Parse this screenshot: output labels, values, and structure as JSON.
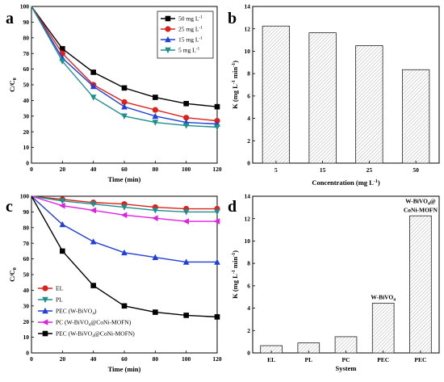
{
  "colors": {
    "50mg": "#000000",
    "25mg": "#e0201b",
    "15mg": "#1f3fd8",
    "5mg": "#1d8f8c",
    "EL": "#e0201b",
    "PL": "#1d8f8c",
    "PEC_W": "#1f3fd8",
    "PC_W_MOFN": "#e020e0",
    "PEC_W_MOFN": "#000000"
  },
  "chart_data": [
    {
      "panel": "a",
      "type": "line",
      "xlabel": "Time (min)",
      "ylabel": "C/C",
      "ylabel_sub": "0",
      "xlim": [
        0,
        120
      ],
      "ylim": [
        0,
        100
      ],
      "xticks": [
        0,
        20,
        40,
        60,
        80,
        100,
        120
      ],
      "yticks": [
        0,
        10,
        20,
        30,
        40,
        50,
        60,
        70,
        80,
        90,
        100
      ],
      "legend_position": "top-right",
      "x": [
        0,
        20,
        40,
        60,
        80,
        100,
        120
      ],
      "series": [
        {
          "key": "50mg",
          "name": "50 mg L",
          "sup": "-1",
          "marker": "square",
          "values": [
            100,
            73,
            58,
            48,
            42,
            38,
            36
          ]
        },
        {
          "key": "25mg",
          "name": "25 mg L",
          "sup": "-1",
          "marker": "circle",
          "values": [
            100,
            70,
            50,
            39,
            34,
            29,
            27
          ]
        },
        {
          "key": "15mg",
          "name": "15 mg L",
          "sup": "-1",
          "marker": "triangle-up",
          "values": [
            100,
            67,
            49,
            36,
            30,
            26,
            25
          ]
        },
        {
          "key": "5mg",
          "name": "5 mg L",
          "sup": "-1",
          "marker": "triangle-down",
          "values": [
            100,
            65,
            42,
            30,
            26,
            24,
            23
          ]
        }
      ]
    },
    {
      "panel": "b",
      "type": "bar",
      "xlabel": "Concentration (mg L",
      "xlabel_sup": "-1",
      "xlabel_tail": ")",
      "ylabel": "K (mg L",
      "ylabel_sup1": "-1",
      "ylabel_mid": " min",
      "ylabel_sup2": "-1",
      "ylabel_tail": ")",
      "ylim": [
        0,
        14
      ],
      "yticks": [
        0,
        2,
        4,
        6,
        8,
        10,
        12,
        14
      ],
      "categories": [
        "5",
        "15",
        "25",
        "50"
      ],
      "values": [
        12.25,
        11.65,
        10.5,
        8.35
      ]
    },
    {
      "panel": "c",
      "type": "line",
      "xlabel": "Time (min)",
      "ylabel": "C/C",
      "ylabel_sub": "0",
      "xlim": [
        0,
        120
      ],
      "ylim": [
        0,
        100
      ],
      "xticks": [
        0,
        20,
        40,
        60,
        80,
        100,
        120
      ],
      "yticks": [
        0,
        10,
        20,
        30,
        40,
        50,
        60,
        70,
        80,
        90,
        100
      ],
      "legend_position": "bottom-left",
      "x": [
        0,
        20,
        40,
        60,
        80,
        100,
        120
      ],
      "series": [
        {
          "key": "EL",
          "name": "EL",
          "marker": "circle",
          "values": [
            100,
            98,
            96,
            95,
            93,
            92,
            92
          ]
        },
        {
          "key": "PL",
          "name": "PL",
          "marker": "triangle-down",
          "values": [
            100,
            97,
            95,
            93,
            91,
            90,
            90
          ]
        },
        {
          "key": "PEC_W",
          "name": "PEC (W-BiVO",
          "sub": "4",
          "tail": ")",
          "marker": "triangle-up",
          "values": [
            100,
            82,
            71,
            64,
            61,
            58,
            58
          ]
        },
        {
          "key": "PC_W_MOFN",
          "name": "PC (W-BiVO",
          "sub": "4",
          "tail": "@CoNi-MOFN)",
          "marker": "triangle-left",
          "values": [
            100,
            94,
            91,
            88,
            86,
            84,
            84
          ]
        },
        {
          "key": "PEC_W_MOFN",
          "name": "PEC (W-BiVO",
          "sub": "4",
          "tail": "@CoNi-MOFN)",
          "marker": "square",
          "values": [
            100,
            65,
            43,
            30,
            26,
            24,
            23
          ]
        }
      ]
    },
    {
      "panel": "d",
      "type": "bar",
      "xlabel": "System",
      "ylabel": "K (mg L",
      "ylabel_sup1": "-1",
      "ylabel_mid": " min",
      "ylabel_sup2": "-1",
      "ylabel_tail": ")",
      "ylim": [
        0,
        14
      ],
      "yticks": [
        0,
        2,
        4,
        6,
        8,
        10,
        12,
        14
      ],
      "categories": [
        "EL",
        "PL",
        "PC",
        "PEC",
        "PEC"
      ],
      "values": [
        0.65,
        0.9,
        1.45,
        4.45,
        12.25
      ],
      "annotations": [
        {
          "index": 3,
          "lines": [
            {
              "text": "W-BiVO",
              "sub": "4"
            }
          ]
        },
        {
          "index": 4,
          "lines": [
            {
              "text": "W-BiVO",
              "sub": "4",
              "tail": "@"
            },
            {
              "text": "CoNi-MOFN"
            }
          ]
        }
      ]
    }
  ]
}
